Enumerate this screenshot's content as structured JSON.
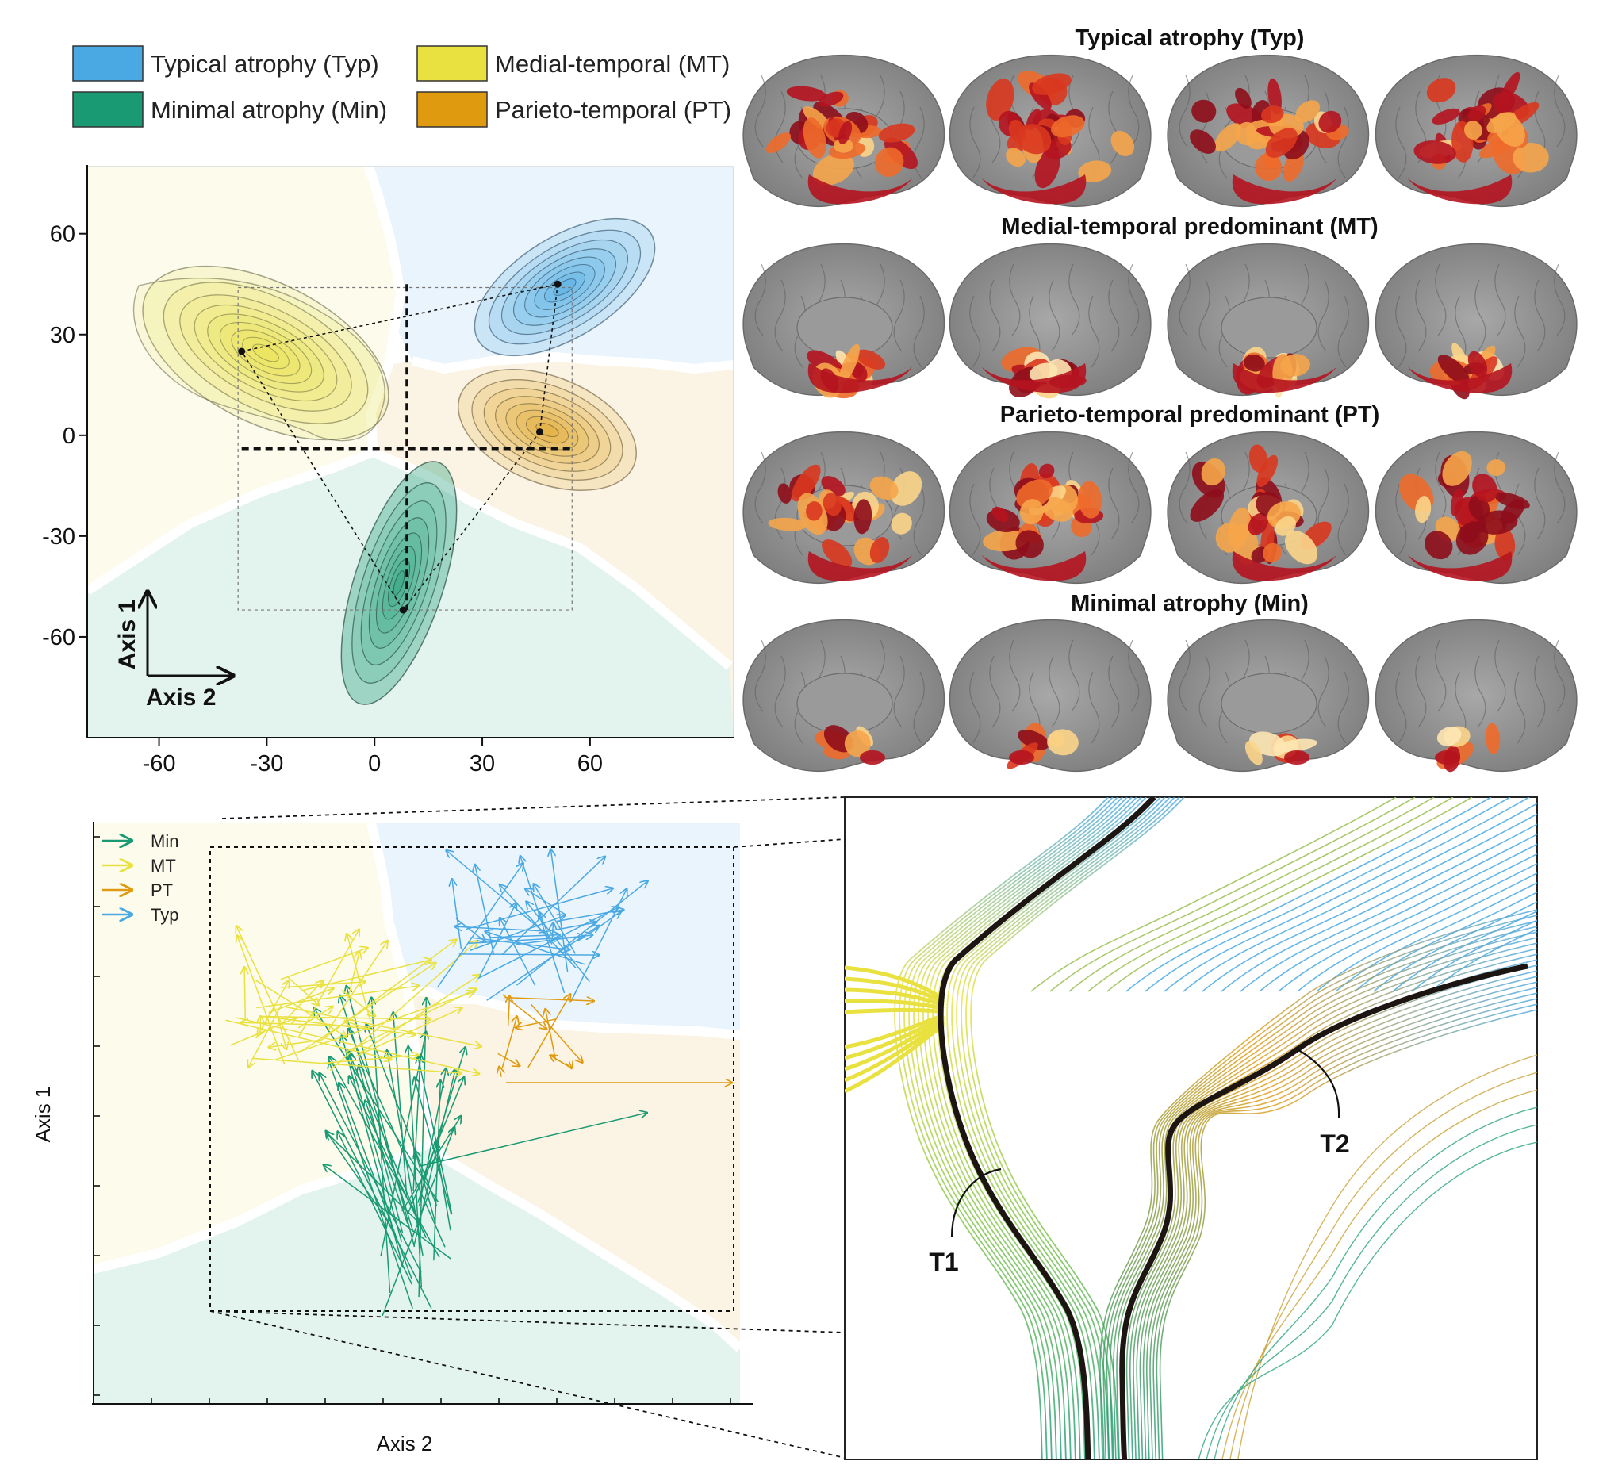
{
  "colors": {
    "typ": "#4aa9e3",
    "mt": "#e9e13f",
    "pt": "#e09a10",
    "min": "#1a9a72",
    "typ_bg": "#eaf4fc",
    "mt_bg": "#fcfbec",
    "pt_bg": "#fbf3e3",
    "min_bg": "#e3f3ee"
  },
  "legend": [
    {
      "key": "typ",
      "label": "Typical atrophy (Typ)"
    },
    {
      "key": "mt",
      "label": "Medial-temporal (MT)"
    },
    {
      "key": "min",
      "label": "Minimal atrophy (Min)"
    },
    {
      "key": "pt",
      "label": "Parieto-temporal (PT)"
    }
  ],
  "brain_panels": [
    {
      "key": "typ",
      "title": "Typical atrophy (Typ)"
    },
    {
      "key": "mt",
      "title": "Medial-temporal predominant (MT)"
    },
    {
      "key": "pt",
      "title": "Parieto-temporal predominant (PT)"
    },
    {
      "key": "min",
      "title": "Minimal atrophy (Min)"
    }
  ],
  "inset_axes": {
    "axis1": "Axis 1",
    "axis2": "Axis 2"
  },
  "bottom_axes": {
    "xlabel": "Axis 2",
    "ylabel": "Axis 1"
  },
  "arrow_legend": [
    {
      "key": "min",
      "label": "Min"
    },
    {
      "key": "mt",
      "label": "MT"
    },
    {
      "key": "pt",
      "label": "PT"
    },
    {
      "key": "typ",
      "label": "Typ"
    }
  ],
  "trajectory_labels": [
    "T1",
    "T2"
  ],
  "chart_data": [
    {
      "type": "scatter",
      "subtype": "density-contour",
      "xlim": [
        -80,
        100
      ],
      "ylim": [
        -90,
        80
      ],
      "x_ticks": [
        "-60",
        "-30",
        "0",
        "30",
        "60"
      ],
      "x_tick_values": [
        -60,
        -30,
        0,
        30,
        60
      ],
      "y_ticks": [
        "60",
        "30",
        "0",
        "-30",
        "-60"
      ],
      "y_tick_values": [
        60,
        30,
        0,
        -30,
        -60
      ],
      "centroids": [
        {
          "key": "typ",
          "x": 51,
          "y": 45
        },
        {
          "key": "mt",
          "x": -37,
          "y": 25
        },
        {
          "key": "pt",
          "x": 46,
          "y": 1
        },
        {
          "key": "min",
          "x": 8,
          "y": -52
        }
      ],
      "origin_cross": {
        "x": 9,
        "y": -4
      }
    },
    {
      "type": "scatter",
      "subtype": "arrows",
      "xlabel": "Axis 2",
      "ylabel": "Axis 1",
      "series": [
        {
          "key": "min",
          "name": "Min"
        },
        {
          "key": "mt",
          "name": "MT"
        },
        {
          "key": "pt",
          "name": "PT"
        },
        {
          "key": "typ",
          "name": "Typ"
        }
      ]
    }
  ]
}
